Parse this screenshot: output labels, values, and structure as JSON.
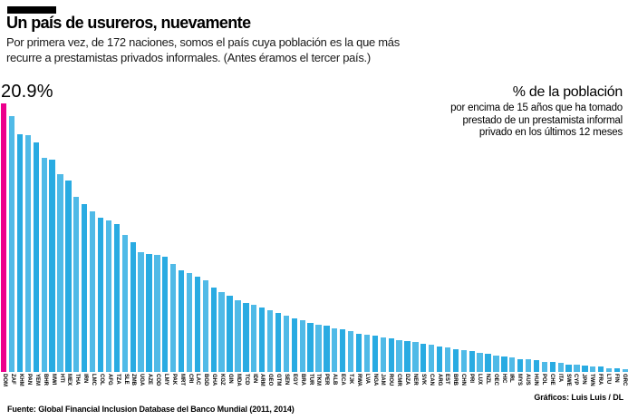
{
  "header": {
    "title": "Un país de usureros, nuevamente",
    "subtitle_line1": "Por primera vez, de 172 naciones, somos el país cuya población es la que más",
    "subtitle_line2": "recurre a prestamistas privados informales. (Antes éramos el tercer país.)"
  },
  "annotation": {
    "value_label": "20.9%",
    "legend_title": "% de la población",
    "legend_line1": "por encima de 15 años que ha tomado",
    "legend_line2": "prestado de un prestamista informal",
    "legend_line3": "privado en los últimos 12 meses"
  },
  "chart_data": {
    "type": "bar",
    "title": "Un país de usureros, nuevamente",
    "ylabel": "% de la población por encima de 15 años que ha tomado prestado de un prestamista informal privado en los últimos 12 meses",
    "xlabel": "",
    "ylim": [
      0,
      20.9
    ],
    "grid": false,
    "legend_position": "none",
    "bar_color": "#29abe2",
    "highlight_color": "#ec008c",
    "highlight_category": "DOM",
    "value_label": {
      "category": "DOM",
      "text": "20.9%"
    },
    "categories": [
      "DOM",
      "ZAF",
      "KHM",
      "PAN",
      "YEM",
      "BHR",
      "MWI",
      "HTI",
      "MEX",
      "THA",
      "IRN",
      "LMC",
      "COL",
      "AFG",
      "TZA",
      "SLE",
      "ZMB",
      "UGA",
      "AZE",
      "COD",
      "LMY",
      "PAK",
      "MRT",
      "CRI",
      "LAC",
      "BGD",
      "GHA",
      "KGZ",
      "GIN",
      "MDA",
      "TCD",
      "IDN",
      "ARM",
      "GEO",
      "GTM",
      "SEN",
      "EGY",
      "BRA",
      "TUR",
      "TKM",
      "PER",
      "ALB",
      "ECA",
      "TJK",
      "RWA",
      "LVA",
      "NGA",
      "JAM",
      "ROU",
      "CMR",
      "DZA",
      "NER",
      "SVK",
      "CAN",
      "ARG",
      "EST",
      "BRB",
      "CHN",
      "PRI",
      "LUX",
      "NZL",
      "OEC",
      "HIC",
      "IRL",
      "MYS",
      "AUS",
      "HUN",
      "POL",
      "CHE",
      "ITA",
      "SWE",
      "CYP",
      "JPN",
      "TWN",
      "FRA",
      "LTU",
      "FIN",
      "GRC"
    ],
    "values": [
      20.9,
      19.9,
      18.5,
      18.4,
      17.9,
      16.7,
      16.5,
      15.4,
      14.9,
      13.6,
      13.1,
      12.5,
      12.0,
      11.8,
      11.5,
      10.7,
      10.1,
      9.3,
      9.2,
      9.1,
      9.0,
      8.4,
      7.9,
      7.7,
      7.4,
      7.1,
      6.6,
      6.2,
      5.9,
      5.6,
      5.4,
      5.2,
      5.0,
      4.8,
      4.6,
      4.4,
      4.2,
      4.0,
      3.8,
      3.7,
      3.6,
      3.4,
      3.3,
      3.2,
      3.0,
      2.9,
      2.8,
      2.7,
      2.6,
      2.5,
      2.4,
      2.3,
      2.2,
      2.1,
      2.0,
      1.9,
      1.8,
      1.7,
      1.6,
      1.5,
      1.4,
      1.3,
      1.2,
      1.1,
      1.0,
      1.0,
      0.9,
      0.8,
      0.8,
      0.7,
      0.6,
      0.6,
      0.5,
      0.4,
      0.4,
      0.3,
      0.3,
      0.2
    ]
  },
  "footer": {
    "source": "Fuente: Global Financial Inclusion Database del Banco Mundial (2011, 2014)",
    "credit": "Gráficos: Luis Luis / DL"
  }
}
